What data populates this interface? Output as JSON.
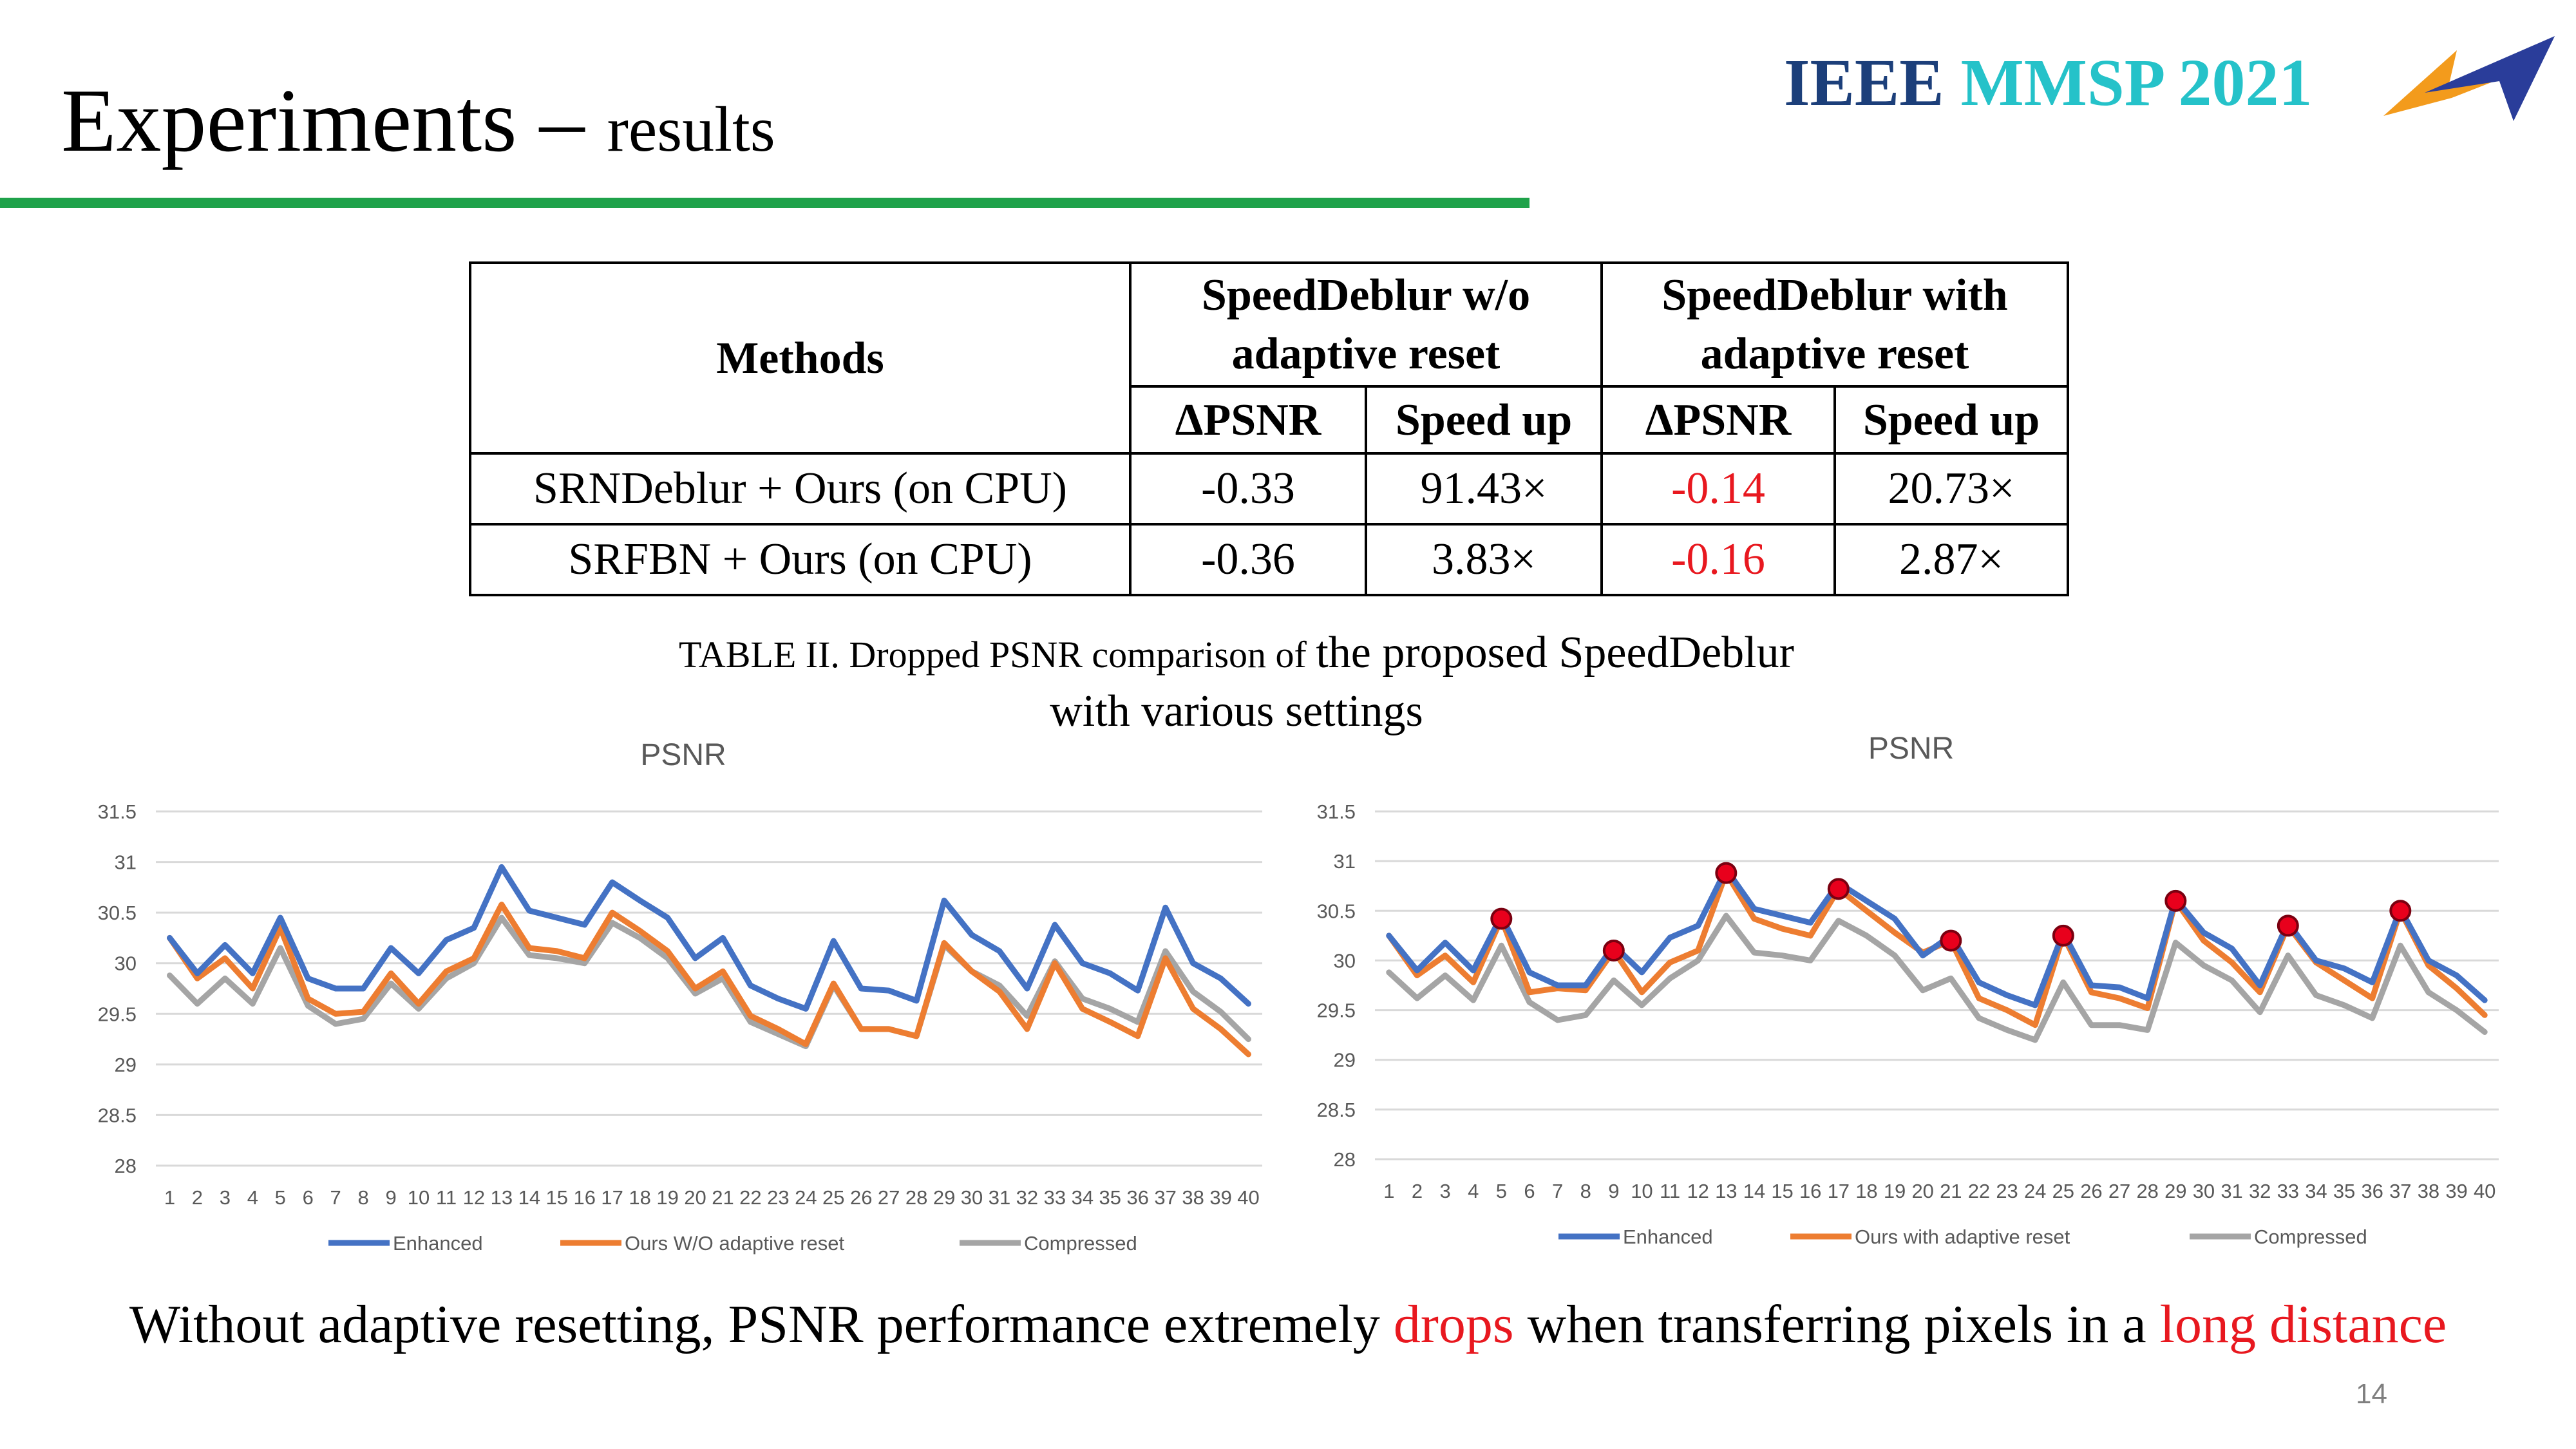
{
  "slide": {
    "title": "Experiments",
    "title_sep": " – ",
    "title_sub": "results",
    "brand_ieee": "IEEE",
    "brand_mmsp": "MMSP 2021",
    "page_number": "14"
  },
  "table": {
    "header_methods": "Methods",
    "header_group1_line1": "SpeedDeblur w/o",
    "header_group1_line2": "adaptive reset",
    "header_group2_line1": "SpeedDeblur with",
    "header_group2_line2": "adaptive reset",
    "subheader_dpsnr": "ΔPSNR",
    "subheader_speedup": "Speed up",
    "rows": [
      {
        "method": "SRNDeblur + Ours (on CPU)",
        "dpsnr_wo": "-0.33",
        "speed_wo": "91.43×",
        "dpsnr_with": "-0.14",
        "speed_with": "20.73×"
      },
      {
        "method": "SRFBN + Ours (on CPU)",
        "dpsnr_wo": "-0.36",
        "speed_wo": "3.83×",
        "dpsnr_with": "-0.16",
        "speed_with": "2.87×"
      }
    ]
  },
  "caption": {
    "part1": "TABLE II. Dropped PSNR comparison of ",
    "part2": "the proposed SpeedDeblur",
    "line2": "with various settings"
  },
  "bottom_text": {
    "part1": "Without adaptive resetting, PSNR performance extremely ",
    "highlight1": "drops",
    "part2": " when transferring pixels in a ",
    "highlight2": "long distance"
  },
  "colors": {
    "enhanced": "#4472c4",
    "ours": "#ed7d31",
    "compressed": "#a5a5a5",
    "marker": "#e8001c",
    "accent_green": "#1fa24a",
    "highlight_red": "#e8181f"
  },
  "chart_data": [
    {
      "type": "line",
      "title": "PSNR",
      "ylim": [
        28,
        31.5
      ],
      "yticks": [
        "28",
        "28.5",
        "29",
        "29.5",
        "30",
        "30.5",
        "31",
        "31.5"
      ],
      "x": [
        "1",
        "2",
        "3",
        "4",
        "5",
        "6",
        "7",
        "8",
        "9",
        "10",
        "11",
        "12",
        "13",
        "14",
        "15",
        "16",
        "17",
        "18",
        "19",
        "20",
        "21",
        "22",
        "23",
        "24",
        "25",
        "26",
        "27",
        "28",
        "29",
        "30",
        "31",
        "32",
        "33",
        "34",
        "35",
        "36",
        "37",
        "38",
        "39",
        "40"
      ],
      "grid": true,
      "legend_position": "bottom",
      "series": [
        {
          "name": "Enhanced",
          "color": "#4472c4",
          "values": [
            30.25,
            29.9,
            30.18,
            29.9,
            30.45,
            29.85,
            29.75,
            29.75,
            30.15,
            29.9,
            30.23,
            30.35,
            30.95,
            30.52,
            30.45,
            30.38,
            30.8,
            30.62,
            30.45,
            30.05,
            30.25,
            29.78,
            29.65,
            29.55,
            30.22,
            29.75,
            29.73,
            29.63,
            30.62,
            30.28,
            30.12,
            29.75,
            30.38,
            30.0,
            29.9,
            29.73,
            30.55,
            30.0,
            29.85,
            29.6
          ]
        },
        {
          "name": "Ours W/O adaptive reset",
          "color": "#ed7d31",
          "values": [
            30.25,
            29.85,
            30.05,
            29.75,
            30.35,
            29.65,
            29.5,
            29.52,
            29.9,
            29.6,
            29.92,
            30.05,
            30.58,
            30.15,
            30.12,
            30.05,
            30.5,
            30.32,
            30.12,
            29.75,
            29.92,
            29.48,
            29.35,
            29.2,
            29.8,
            29.35,
            29.35,
            29.28,
            30.2,
            29.92,
            29.72,
            29.35,
            30.0,
            29.55,
            29.42,
            29.28,
            30.05,
            29.55,
            29.35,
            29.1
          ]
        },
        {
          "name": "Compressed",
          "color": "#a5a5a5",
          "values": [
            29.88,
            29.6,
            29.85,
            29.6,
            30.15,
            29.58,
            29.4,
            29.45,
            29.8,
            29.55,
            29.85,
            30.0,
            30.45,
            30.08,
            30.05,
            30.0,
            30.4,
            30.25,
            30.05,
            29.7,
            29.85,
            29.42,
            29.3,
            29.18,
            29.78,
            29.35,
            29.35,
            29.28,
            30.18,
            29.92,
            29.78,
            29.48,
            30.02,
            29.65,
            29.55,
            29.42,
            30.12,
            29.72,
            29.52,
            29.25
          ]
        }
      ]
    },
    {
      "type": "line",
      "title": "PSNR",
      "ylim": [
        28,
        31.5
      ],
      "yticks": [
        "28",
        "28.5",
        "29",
        "29.5",
        "30",
        "30.5",
        "31",
        "31.5"
      ],
      "x": [
        "1",
        "2",
        "3",
        "4",
        "5",
        "6",
        "7",
        "8",
        "9",
        "10",
        "11",
        "12",
        "13",
        "14",
        "15",
        "16",
        "17",
        "18",
        "19",
        "20",
        "21",
        "22",
        "23",
        "24",
        "25",
        "26",
        "27",
        "28",
        "29",
        "30",
        "31",
        "32",
        "33",
        "34",
        "35",
        "36",
        "37",
        "38",
        "39",
        "40"
      ],
      "grid": true,
      "legend_position": "bottom",
      "reset_points": [
        5,
        9,
        13,
        17,
        21,
        25,
        29,
        33,
        37
      ],
      "series": [
        {
          "name": "Enhanced",
          "color": "#4472c4",
          "values": [
            30.25,
            29.9,
            30.18,
            29.9,
            30.45,
            29.88,
            29.75,
            29.75,
            30.15,
            29.88,
            30.23,
            30.35,
            30.92,
            30.52,
            30.45,
            30.38,
            30.78,
            30.6,
            30.42,
            30.05,
            30.25,
            29.78,
            29.65,
            29.55,
            30.28,
            29.75,
            29.73,
            29.62,
            30.62,
            30.28,
            30.12,
            29.75,
            30.38,
            30.0,
            29.92,
            29.78,
            30.52,
            30.0,
            29.85,
            29.6
          ]
        },
        {
          "name": "Ours with adaptive reset",
          "color": "#ed7d31",
          "values": [
            30.25,
            29.85,
            30.05,
            29.78,
            30.42,
            29.68,
            29.72,
            29.7,
            30.1,
            29.68,
            29.98,
            30.1,
            30.88,
            30.42,
            30.32,
            30.25,
            30.72,
            30.5,
            30.28,
            30.08,
            30.2,
            29.62,
            29.5,
            29.35,
            30.25,
            29.68,
            29.62,
            29.52,
            30.6,
            30.2,
            29.98,
            29.68,
            30.35,
            29.98,
            29.8,
            29.62,
            30.5,
            29.95,
            29.72,
            29.45
          ]
        },
        {
          "name": "Compressed",
          "color": "#a5a5a5",
          "values": [
            29.88,
            29.62,
            29.85,
            29.6,
            30.15,
            29.58,
            29.4,
            29.45,
            29.8,
            29.55,
            29.82,
            30.0,
            30.45,
            30.08,
            30.05,
            30.0,
            30.4,
            30.25,
            30.05,
            29.7,
            29.82,
            29.42,
            29.3,
            29.2,
            29.78,
            29.35,
            29.35,
            29.3,
            30.18,
            29.95,
            29.8,
            29.48,
            30.05,
            29.65,
            29.55,
            29.42,
            30.15,
            29.68,
            29.5,
            29.28
          ]
        }
      ]
    }
  ]
}
